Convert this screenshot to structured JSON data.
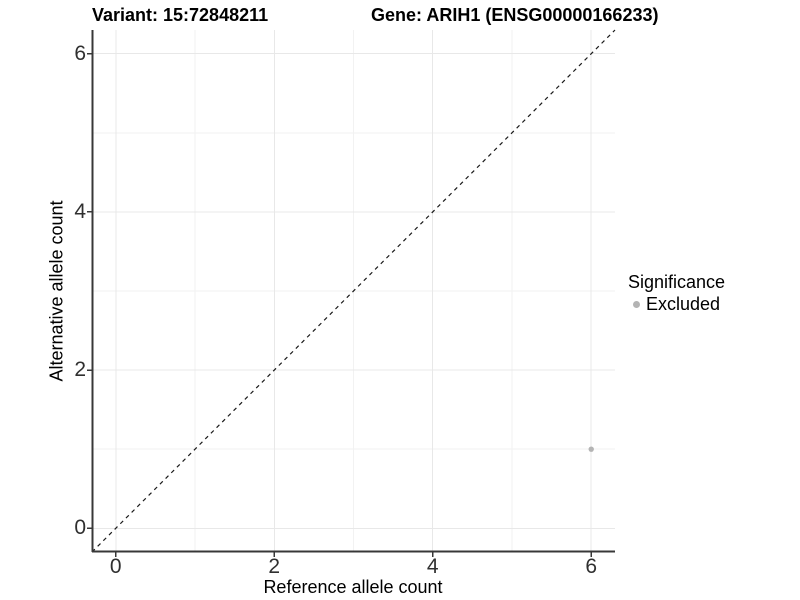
{
  "header": {
    "variant_title": "Variant: 15:72848211",
    "gene_title": "Gene: ARIH1 (ENSG00000166233)"
  },
  "axes": {
    "x_label": "Reference allele count",
    "y_label": "Alternative allele count"
  },
  "legend": {
    "title": "Significance",
    "items": [
      {
        "label": "Excluded",
        "color": "#b4b4b4"
      }
    ]
  },
  "colors": {
    "background": "#ffffff",
    "grid_major": "#e8e8e8",
    "grid_minor": "#f2f2f2",
    "axis_line": "#383838",
    "tick_mark": "#383838",
    "tick_label": "#303030",
    "identity_line": "#1a1a1a",
    "excluded_point": "#b4b4b4"
  },
  "chart_data": {
    "type": "scatter",
    "title": "Variant: 15:72848211   Gene: ARIH1 (ENSG00000166233)",
    "xlabel": "Reference allele count",
    "ylabel": "Alternative allele count",
    "xlim": [
      -0.3,
      6.3
    ],
    "ylim": [
      -0.3,
      6.3
    ],
    "x_ticks": [
      0,
      2,
      4,
      6
    ],
    "y_ticks": [
      0,
      2,
      4,
      6
    ],
    "x_minor_ticks": [
      1,
      3,
      5
    ],
    "y_minor_ticks": [
      1,
      3,
      5
    ],
    "grid": true,
    "legend_position": "right",
    "series": [
      {
        "name": "Excluded",
        "color": "#b4b4b4",
        "points": [
          {
            "x": 6,
            "y": 1
          }
        ]
      }
    ],
    "identity_line": {
      "style": "dashed",
      "from": [
        -0.3,
        -0.3
      ],
      "to": [
        6.3,
        6.3
      ],
      "color": "#1a1a1a"
    }
  }
}
